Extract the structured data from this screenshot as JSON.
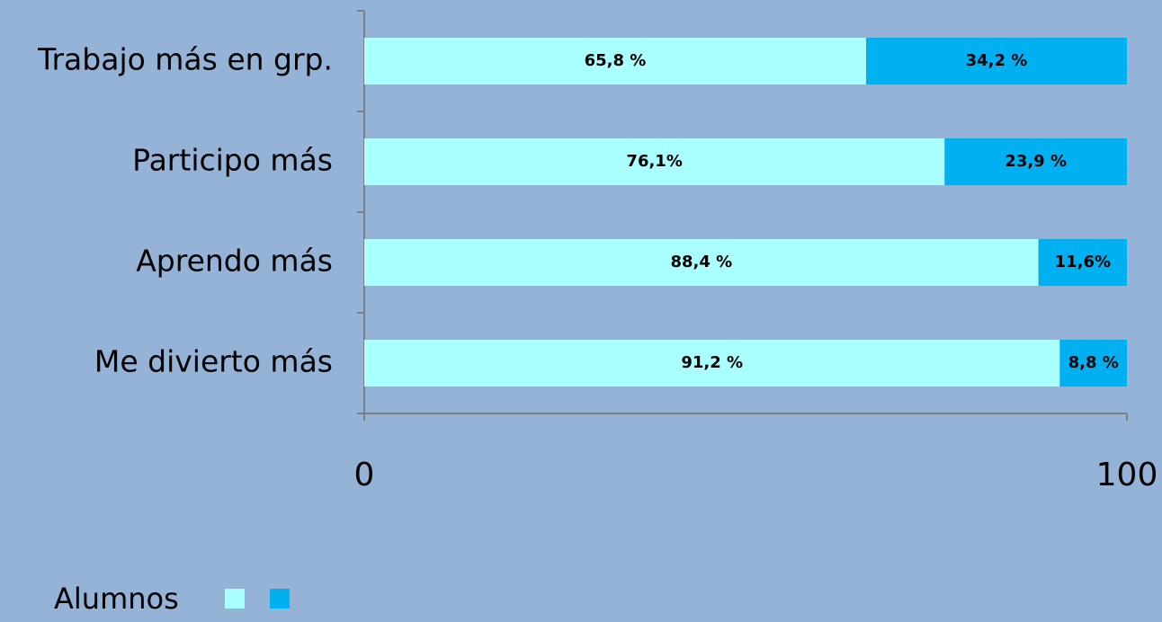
{
  "chart_data": {
    "type": "stacked_bar_horizontal",
    "categories": [
      "Trabajo más en grp.",
      "Participo más",
      "Aprendo más",
      "Me divierto más"
    ],
    "series": [
      {
        "color": "#aaffff",
        "values": [
          65.8,
          76.1,
          88.4,
          91.2
        ],
        "value_labels": [
          "65,8 %",
          "76,1%",
          "88,4 %",
          "91,2 %"
        ]
      },
      {
        "color": "#00b0f0",
        "values": [
          34.2,
          23.9,
          11.6,
          8.8
        ],
        "value_labels": [
          "34,2 %",
          "23,9 %",
          "11,6%",
          "8,8 %"
        ]
      }
    ],
    "xlim": [
      0,
      100
    ],
    "xticks": [
      0,
      100
    ],
    "legend_title": "Alumnos"
  }
}
